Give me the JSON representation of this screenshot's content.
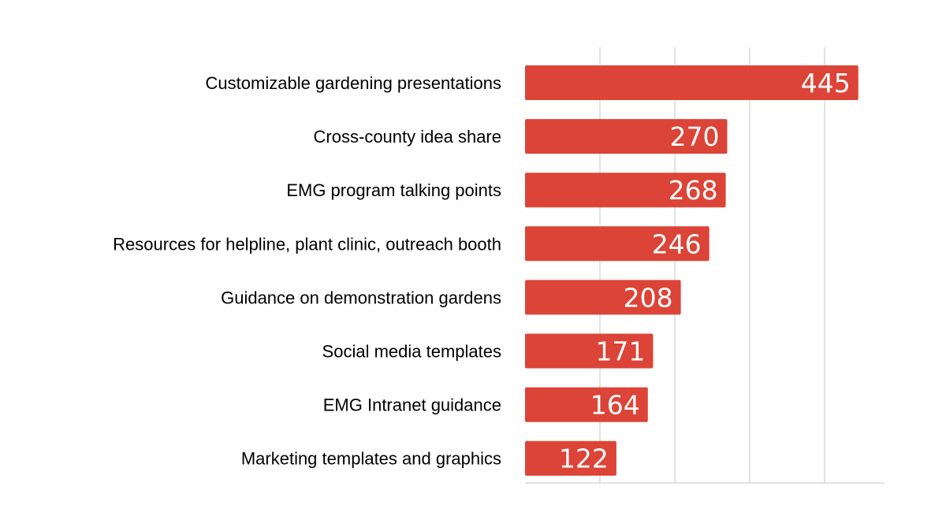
{
  "chart_data": {
    "type": "bar",
    "orientation": "horizontal",
    "title": "",
    "xlabel": "",
    "ylabel": "",
    "categories": [
      "Customizable gardening presentations",
      "Cross-county idea share",
      "EMG program talking points",
      "Resources for helpline, plant clinic, outreach booth",
      "Guidance on demonstration gardens",
      "Social media templates",
      "EMG Intranet guidance",
      "Marketing templates and graphics"
    ],
    "values": [
      445,
      270,
      268,
      246,
      208,
      171,
      164,
      122
    ],
    "xlim": [
      0,
      480
    ],
    "grid": true,
    "gridlines_at": [
      100,
      200,
      300,
      400
    ],
    "data_labels": true,
    "bar_color": "#db4437",
    "grid_color": "#d9d9d9"
  }
}
